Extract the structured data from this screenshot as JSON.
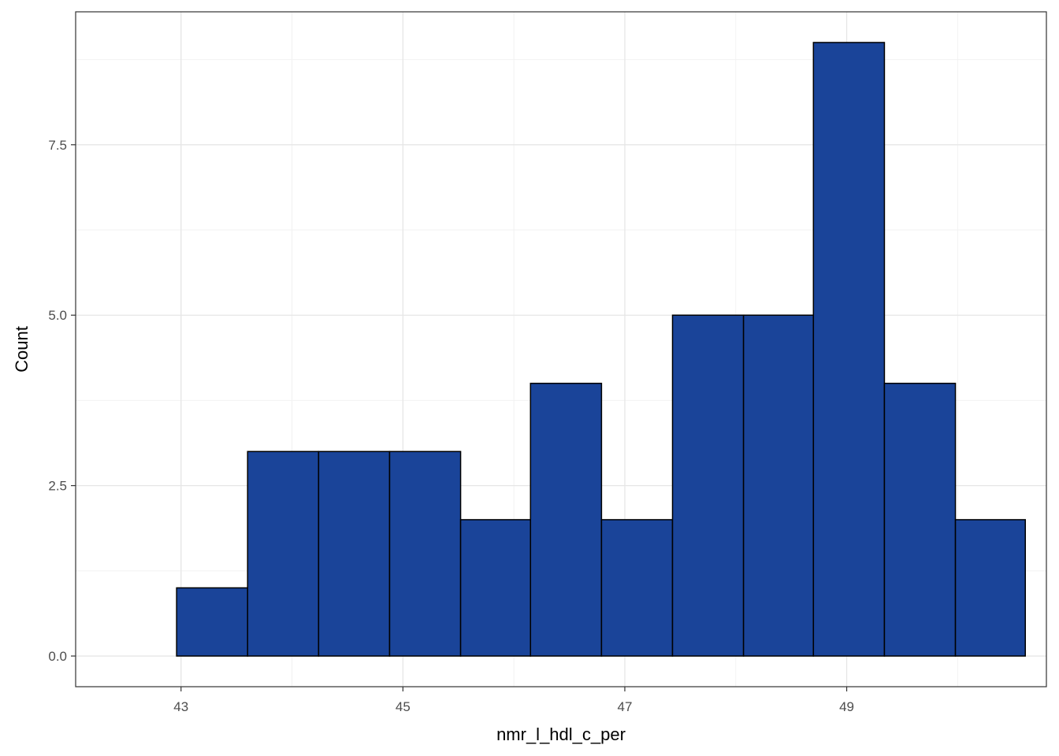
{
  "chart_data": {
    "type": "bar",
    "subtype": "histogram",
    "xlabel": "nmr_l_hdl_c_per",
    "ylabel": "Count",
    "x_ticks": [
      43,
      45,
      47,
      49
    ],
    "y_ticks": [
      0.0,
      2.5,
      5.0,
      7.5
    ],
    "y_tick_labels": [
      "0.0",
      "2.5",
      "5.0",
      "7.5"
    ],
    "xlim": [
      42.05,
      50.8
    ],
    "ylim": [
      -0.45,
      9.45
    ],
    "grid": true,
    "bar_fill": "#1A4499",
    "bar_stroke": "#000000",
    "bins": [
      {
        "x0": 42.96,
        "x1": 43.6,
        "count": 1
      },
      {
        "x0": 43.6,
        "x1": 44.24,
        "count": 3
      },
      {
        "x0": 44.24,
        "x1": 44.88,
        "count": 3
      },
      {
        "x0": 44.88,
        "x1": 45.52,
        "count": 3
      },
      {
        "x0": 45.52,
        "x1": 46.15,
        "count": 2
      },
      {
        "x0": 46.15,
        "x1": 46.79,
        "count": 4
      },
      {
        "x0": 46.79,
        "x1": 47.43,
        "count": 2
      },
      {
        "x0": 47.43,
        "x1": 48.07,
        "count": 5
      },
      {
        "x0": 48.07,
        "x1": 48.7,
        "count": 5
      },
      {
        "x0": 48.7,
        "x1": 49.34,
        "count": 9
      },
      {
        "x0": 49.34,
        "x1": 49.98,
        "count": 4
      },
      {
        "x0": 49.98,
        "x1": 50.61,
        "count": 2
      }
    ]
  }
}
